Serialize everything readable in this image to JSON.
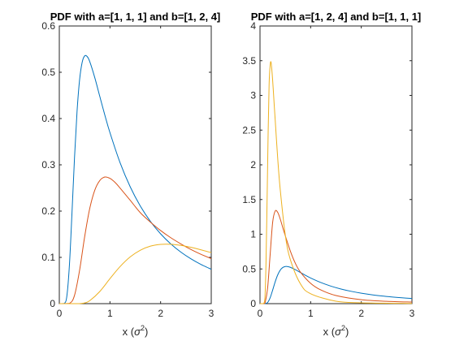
{
  "chart_data": [
    {
      "type": "line",
      "title": "PDF with a=[1, 1, 1] and b=[1, 2, 4]",
      "xlabel_main": "x (",
      "xlabel_sym": "σ",
      "xlabel_sup": "2",
      "xlabel_close": ")",
      "xlim": [
        0,
        3
      ],
      "ylim": [
        0,
        0.6
      ],
      "xticks": [
        "0",
        "1",
        "2",
        "3"
      ],
      "yticks": [
        "0",
        "0.1",
        "0.2",
        "0.3",
        "0.4",
        "0.5",
        "0.6"
      ],
      "series": [
        {
          "color": "#0072bd",
          "x": [
            0.0,
            0.1,
            0.15,
            0.2,
            0.25,
            0.3,
            0.35,
            0.4,
            0.45,
            0.5,
            0.55,
            0.6,
            0.7,
            0.8,
            0.9,
            1.0,
            1.2,
            1.4,
            1.6,
            1.8,
            2.0,
            2.2,
            2.4,
            2.6,
            2.8,
            3.0
          ],
          "y": [
            0.0,
            0.0005,
            0.0173,
            0.0842,
            0.1954,
            0.3152,
            0.4151,
            0.4833,
            0.5209,
            0.5353,
            0.534,
            0.5233,
            0.4885,
            0.4475,
            0.4071,
            0.3695,
            0.3045,
            0.2524,
            0.2108,
            0.1776,
            0.1509,
            0.1292,
            0.1114,
            0.0968,
            0.0846,
            0.0744
          ]
        },
        {
          "color": "#d95319",
          "x": [
            0.0,
            0.2,
            0.3,
            0.4,
            0.5,
            0.6,
            0.7,
            0.8,
            0.9,
            1.0,
            1.1,
            1.2,
            1.4,
            1.6,
            1.8,
            2.0,
            2.2,
            2.4,
            2.6,
            2.8,
            3.0
          ],
          "y": [
            0.0,
            0.0006,
            0.0179,
            0.0718,
            0.1443,
            0.2052,
            0.2451,
            0.2662,
            0.2736,
            0.2707,
            0.262,
            0.2497,
            0.2233,
            0.1965,
            0.1762,
            0.158,
            0.1425,
            0.1291,
            0.117,
            0.1065,
            0.0973
          ]
        },
        {
          "color": "#edb120",
          "x": [
            0.0,
            0.3,
            0.4,
            0.5,
            0.6,
            0.8,
            1.0,
            1.2,
            1.4,
            1.6,
            1.8,
            2.0,
            2.2,
            2.4,
            2.6,
            2.8,
            3.0
          ],
          "y": [
            0.0,
            0.0,
            0.0001,
            0.0015,
            0.0063,
            0.0263,
            0.0541,
            0.0802,
            0.1011,
            0.1155,
            0.1243,
            0.1281,
            0.1283,
            0.1259,
            0.1217,
            0.1163,
            0.1103
          ]
        }
      ]
    },
    {
      "type": "line",
      "title": "PDF with a=[1, 2, 4] and b=[1, 1, 1]",
      "xlabel_main": "x (",
      "xlabel_sym": "σ",
      "xlabel_sup": "2",
      "xlabel_close": ")",
      "xlim": [
        0,
        3
      ],
      "ylim": [
        0,
        4
      ],
      "xticks": [
        "0",
        "1",
        "2",
        "3"
      ],
      "yticks": [
        "0",
        "0.5",
        "1",
        "1.5",
        "2",
        "2.5",
        "3",
        "3.5",
        "4"
      ],
      "series": [
        {
          "color": "#0072bd",
          "x": [
            0.0,
            0.1,
            0.15,
            0.2,
            0.25,
            0.3,
            0.35,
            0.4,
            0.45,
            0.5,
            0.55,
            0.6,
            0.7,
            0.8,
            0.9,
            1.0,
            1.2,
            1.4,
            1.6,
            1.8,
            2.0,
            2.2,
            2.4,
            2.6,
            2.8,
            3.0
          ],
          "y": [
            0.0,
            0.0005,
            0.0173,
            0.0842,
            0.1954,
            0.3152,
            0.4151,
            0.4833,
            0.5209,
            0.5353,
            0.534,
            0.5233,
            0.4885,
            0.4475,
            0.4071,
            0.3695,
            0.3045,
            0.2524,
            0.2108,
            0.1776,
            0.1509,
            0.1292,
            0.1114,
            0.0968,
            0.0846,
            0.0744
          ]
        },
        {
          "color": "#d95319",
          "x": [
            0.0,
            0.08,
            0.1,
            0.15,
            0.2,
            0.25,
            0.3,
            0.35,
            0.4,
            0.45,
            0.5,
            0.6,
            0.7,
            0.8,
            1.0,
            1.2,
            1.5,
            2.0,
            2.5,
            3.0
          ],
          "y": [
            0.0,
            0.0014,
            0.0108,
            0.2232,
            0.704,
            1.173,
            1.334,
            1.314,
            1.218,
            1.095,
            0.977,
            0.755,
            0.578,
            0.453,
            0.293,
            0.198,
            0.117,
            0.0571,
            0.0342,
            0.0229
          ]
        },
        {
          "color": "#edb120",
          "x": [
            0.0,
            0.05,
            0.08,
            0.1,
            0.12,
            0.14,
            0.16,
            0.18,
            0.2,
            0.22,
            0.25,
            0.28,
            0.3,
            0.35,
            0.4,
            0.5,
            0.6,
            0.8,
            1.0,
            1.5,
            2.0,
            3.0
          ],
          "y": [
            0.0,
            0.0,
            0.0107,
            0.118,
            0.637,
            1.497,
            2.43,
            3.16,
            3.43,
            3.47,
            3.216,
            2.87,
            2.648,
            2.088,
            1.64,
            0.985,
            0.632,
            0.283,
            0.143,
            0.035,
            0.0123,
            0.0026
          ]
        }
      ]
    }
  ]
}
